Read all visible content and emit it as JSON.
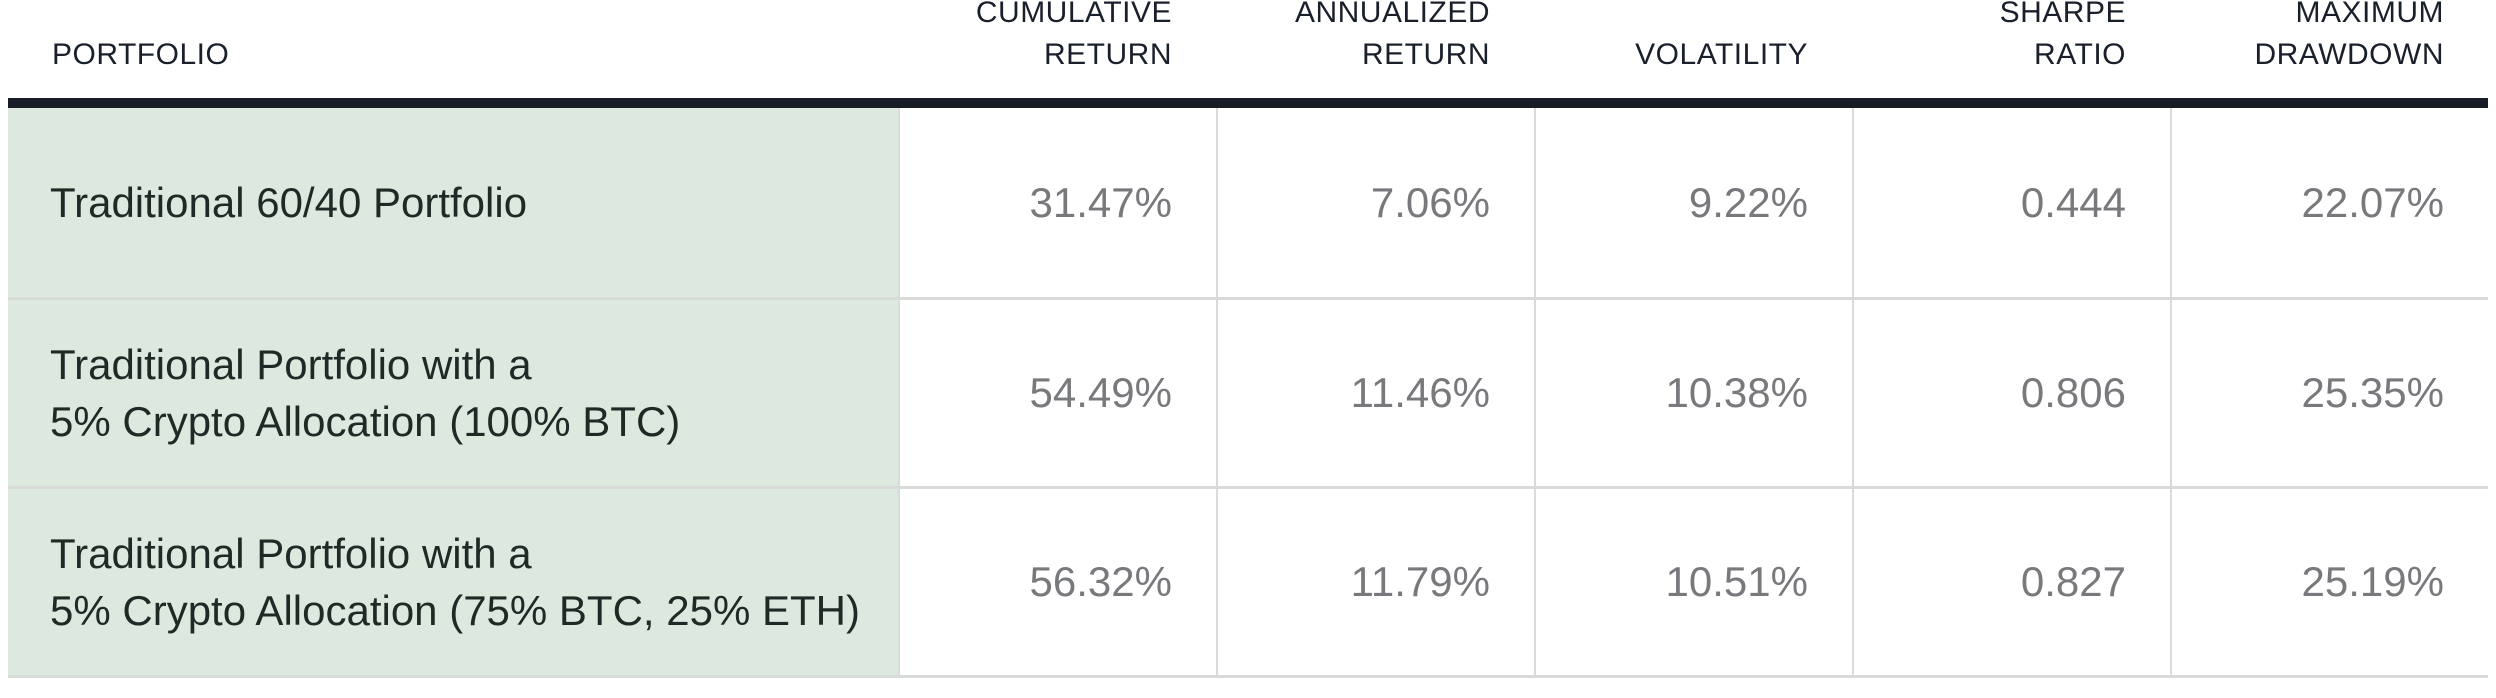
{
  "theme": {
    "bg": "#ffffff",
    "green_bg": "#dde9df",
    "header_rule": "#171c26",
    "header_text": "#1a202b",
    "body_text": "#1f2a26",
    "number_text": "#77797c",
    "separator": "#d9dbd9"
  },
  "header": {
    "columns": [
      {
        "id": "portfolio",
        "line1": "PORTFOLIO",
        "line2": ""
      },
      {
        "id": "cumulative_return",
        "line1": "CUMULATIVE",
        "line2": "RETURN"
      },
      {
        "id": "annualized_return",
        "line1": "ANNUALIZED",
        "line2": "RETURN"
      },
      {
        "id": "volatility",
        "line1": "",
        "line2": "VOLATILITY"
      },
      {
        "id": "sharpe_ratio",
        "line1": "SHARPE",
        "line2": "RATIO"
      },
      {
        "id": "maximum_drawdown",
        "line1": "MAXIMUM",
        "line2": "DRAWDOWN"
      }
    ]
  },
  "table": {
    "rows": [
      {
        "name_line1": "Traditional 60/40 Portfolio",
        "cumulative": "31.47%",
        "annualized": "7.06%",
        "volatility": "9.22%",
        "sharpe": "0.444",
        "drawdown": "22.07%"
      },
      {
        "name_line1": "Traditional Portfolio with a",
        "name_line2": "5% Crypto Allocation (100% BTC)",
        "cumulative": "54.49%",
        "annualized": "11.46%",
        "volatility": "10.38%",
        "sharpe": "0.806",
        "drawdown": "25.35%"
      },
      {
        "name_line1": "Traditional Portfolio with a",
        "name_line2": "5% Crypto Allocation (75% BTC, 25% ETH)",
        "cumulative": "56.32%",
        "annualized": "11.79%",
        "volatility": "10.51%",
        "sharpe": "0.827",
        "drawdown": "25.19%"
      }
    ]
  },
  "chart_data": {
    "type": "table",
    "title": "Portfolio performance comparison",
    "columns": [
      "Portfolio",
      "Cumulative Return",
      "Annualized Return",
      "Volatility",
      "Sharpe Ratio",
      "Maximum Drawdown"
    ],
    "rows": [
      {
        "portfolio": "Traditional 60/40 Portfolio",
        "cumulative_return_pct": 31.47,
        "annualized_return_pct": 7.06,
        "volatility_pct": 9.22,
        "sharpe_ratio": 0.444,
        "maximum_drawdown_pct": 22.07
      },
      {
        "portfolio": "Traditional Portfolio with a 5% Crypto Allocation (100% BTC)",
        "cumulative_return_pct": 54.49,
        "annualized_return_pct": 11.46,
        "volatility_pct": 10.38,
        "sharpe_ratio": 0.806,
        "maximum_drawdown_pct": 25.35
      },
      {
        "portfolio": "Traditional Portfolio with a 5% Crypto Allocation (75% BTC, 25% ETH)",
        "cumulative_return_pct": 56.32,
        "annualized_return_pct": 11.79,
        "volatility_pct": 10.51,
        "sharpe_ratio": 0.827,
        "maximum_drawdown_pct": 25.19
      }
    ],
    "layout": {
      "highlighted_column": "Portfolio",
      "highlight_color": "#dde9df",
      "grid": true
    }
  }
}
